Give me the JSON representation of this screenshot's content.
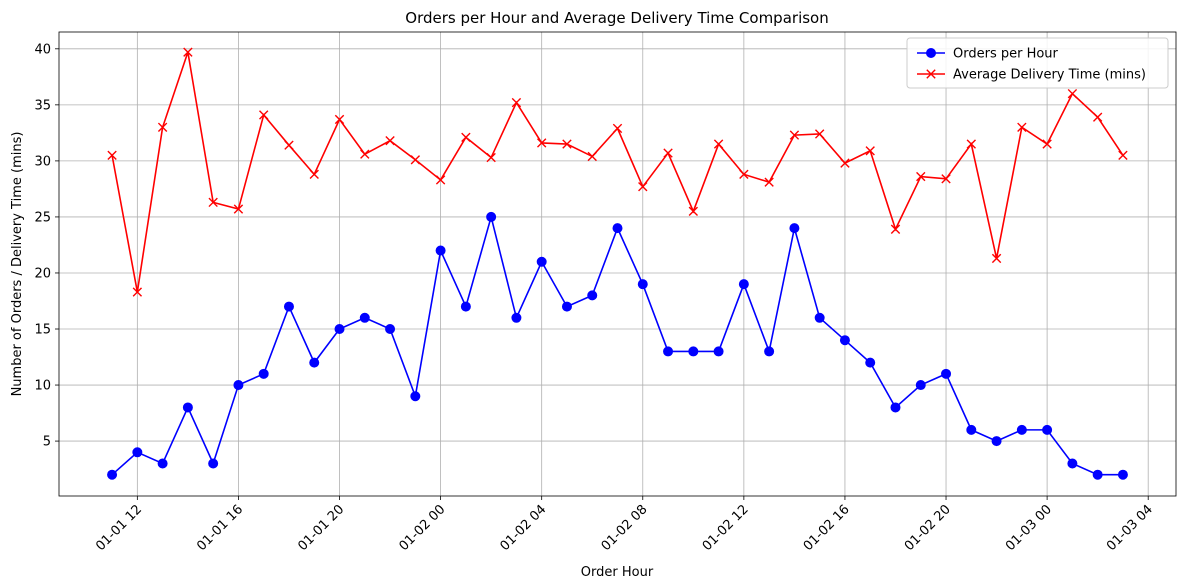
{
  "chart_data": {
    "type": "line",
    "title": "Orders per Hour and Average Delivery Time Comparison",
    "xlabel": "Order Hour",
    "ylabel": "Number of Orders / Delivery Time (mins)",
    "x": [
      "2024-01-01 11:00",
      "2024-01-01 12:00",
      "2024-01-01 13:00",
      "2024-01-01 14:00",
      "2024-01-01 15:00",
      "2024-01-01 16:00",
      "2024-01-01 17:00",
      "2024-01-01 18:00",
      "2024-01-01 19:00",
      "2024-01-01 20:00",
      "2024-01-01 21:00",
      "2024-01-01 22:00",
      "2024-01-01 23:00",
      "2024-01-02 00:00",
      "2024-01-02 01:00",
      "2024-01-02 02:00",
      "2024-01-02 03:00",
      "2024-01-02 04:00",
      "2024-01-02 05:00",
      "2024-01-02 06:00",
      "2024-01-02 07:00",
      "2024-01-02 08:00",
      "2024-01-02 09:00",
      "2024-01-02 10:00",
      "2024-01-02 11:00",
      "2024-01-02 12:00",
      "2024-01-02 13:00",
      "2024-01-02 14:00",
      "2024-01-02 15:00",
      "2024-01-02 16:00",
      "2024-01-02 17:00",
      "2024-01-02 18:00",
      "2024-01-02 19:00",
      "2024-01-02 20:00",
      "2024-01-02 21:00",
      "2024-01-02 22:00",
      "2024-01-02 23:00",
      "2024-01-03 00:00",
      "2024-01-03 01:00",
      "2024-01-03 02:00",
      "2024-01-03 03:00"
    ],
    "series": [
      {
        "name": "Orders per Hour",
        "color": "#0000ff",
        "marker": "circle",
        "values": [
          2,
          4,
          3,
          8,
          3,
          10,
          11,
          17,
          12,
          15,
          16,
          15,
          9,
          22,
          17,
          25,
          16,
          21,
          17,
          18,
          24,
          19,
          13,
          13,
          13,
          19,
          13,
          24,
          16,
          14,
          12,
          8,
          10,
          11,
          6,
          5,
          6,
          6,
          3,
          2,
          2
        ]
      },
      {
        "name": "Average Delivery Time (mins)",
        "color": "#ff0000",
        "marker": "x",
        "values": [
          30.5,
          18.3,
          33.0,
          39.7,
          26.3,
          25.7,
          34.1,
          31.4,
          28.8,
          33.7,
          30.6,
          31.8,
          30.1,
          28.3,
          32.1,
          30.3,
          35.2,
          31.6,
          31.5,
          30.4,
          32.9,
          27.7,
          30.7,
          25.5,
          31.5,
          28.8,
          28.1,
          32.3,
          32.4,
          29.8,
          30.9,
          23.9,
          28.6,
          28.4,
          31.5,
          21.3,
          33.0,
          31.5,
          36.0,
          33.9,
          30.5
        ]
      }
    ],
    "x_tick_labels": [
      "01-01 12",
      "01-01 16",
      "01-01 20",
      "01-02 00",
      "01-02 04",
      "01-02 08",
      "01-02 12",
      "01-02 16",
      "01-02 20",
      "01-03 00",
      "01-03 04"
    ],
    "y_ticks": [
      5,
      10,
      15,
      20,
      25,
      30,
      35,
      40
    ],
    "xlim": [
      "2024-01-01 08:54",
      "2024-01-03 05:06"
    ],
    "ylim": [
      0.1,
      41.5
    ],
    "grid": true,
    "legend_position": "top-right"
  }
}
